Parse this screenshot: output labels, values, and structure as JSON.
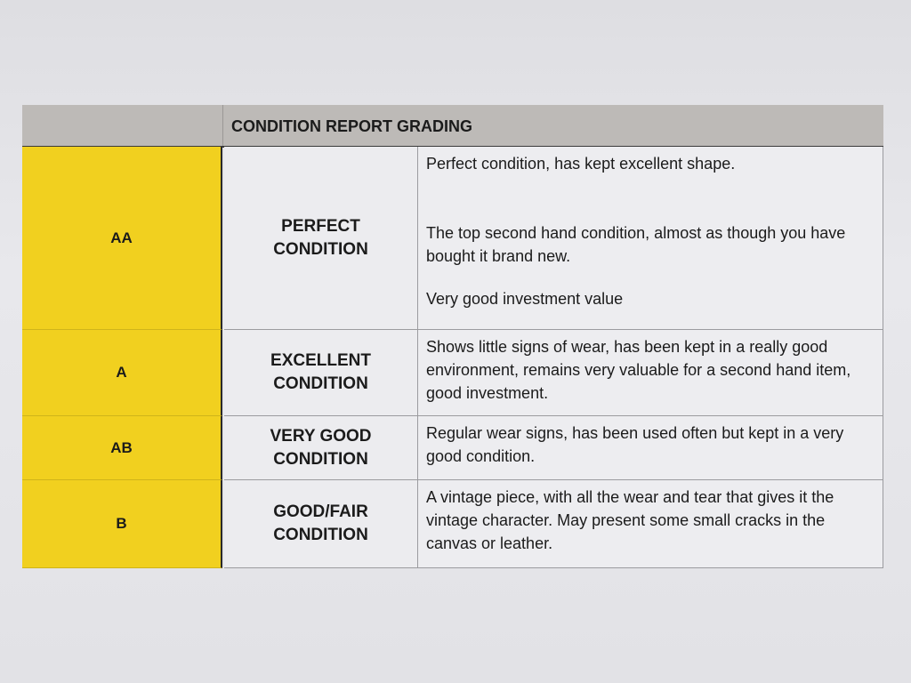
{
  "table": {
    "title": "CONDITION REPORT GRADING",
    "rows": [
      {
        "grade": "AA",
        "condition_line1": "PERFECT",
        "condition_line2": "CONDITION",
        "description": [
          "Perfect condition, has kept excellent shape.",
          "The top second hand condition, almost as though you have bought it brand new.",
          "Very good investment value"
        ]
      },
      {
        "grade": "A",
        "condition_line1": "EXCELLENT",
        "condition_line2": "CONDITION",
        "description": [
          "Shows little signs of wear, has been kept in a really good environment, remains very valuable for a second hand item, good investment."
        ]
      },
      {
        "grade": "AB",
        "condition_line1": "VERY GOOD",
        "condition_line2": "CONDITION",
        "description": [
          "Regular wear signs, has been used often but kept in a very good condition."
        ]
      },
      {
        "grade": "B",
        "condition_line1": "GOOD/FAIR",
        "condition_line2": "CONDITION",
        "description": [
          "A vintage piece, with all the wear and tear that gives it the vintage character. May present some small cracks in the canvas or leather."
        ]
      }
    ]
  },
  "colors": {
    "grade_fill": "#f1d01f",
    "header_fill": "#bdbab7"
  }
}
